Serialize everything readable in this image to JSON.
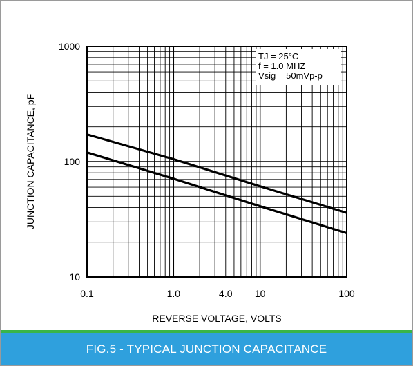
{
  "caption": "FIG.5 - TYPICAL JUNCTION CAPACITANCE",
  "chart_data": {
    "type": "line",
    "title": "",
    "xlabel": "REVERSE VOLTAGE, VOLTS",
    "ylabel": "JUNCTION CAPACITANCE, pF",
    "x_scale": "log",
    "y_scale": "log",
    "xlim": [
      0.1,
      100
    ],
    "ylim": [
      10,
      1000
    ],
    "x_tick_labels": [
      {
        "value": 0.1,
        "label": "0.1"
      },
      {
        "value": 1,
        "label": "1.0"
      },
      {
        "value": 4,
        "label": "4.0"
      },
      {
        "value": 10,
        "label": "10"
      },
      {
        "value": 100,
        "label": "100"
      }
    ],
    "y_tick_labels": [
      {
        "value": 10,
        "label": "10"
      },
      {
        "value": 100,
        "label": "100"
      },
      {
        "value": 1000,
        "label": "1000"
      }
    ],
    "grid": true,
    "series": [
      {
        "values": [
          [
            0.1,
            172
          ],
          [
            1,
            105
          ],
          [
            10,
            61
          ],
          [
            100,
            36
          ]
        ]
      },
      {
        "values": [
          [
            0.1,
            120
          ],
          [
            1,
            71
          ],
          [
            10,
            41
          ],
          [
            100,
            24
          ]
        ]
      }
    ],
    "annotation": {
      "lines": [
        "TJ = 25°C",
        "f = 1.0 MHZ",
        "Vsig = 50mVp-p"
      ],
      "placement": "top-right"
    },
    "colors": {
      "line": "#000000",
      "grid": "#000000"
    }
  }
}
